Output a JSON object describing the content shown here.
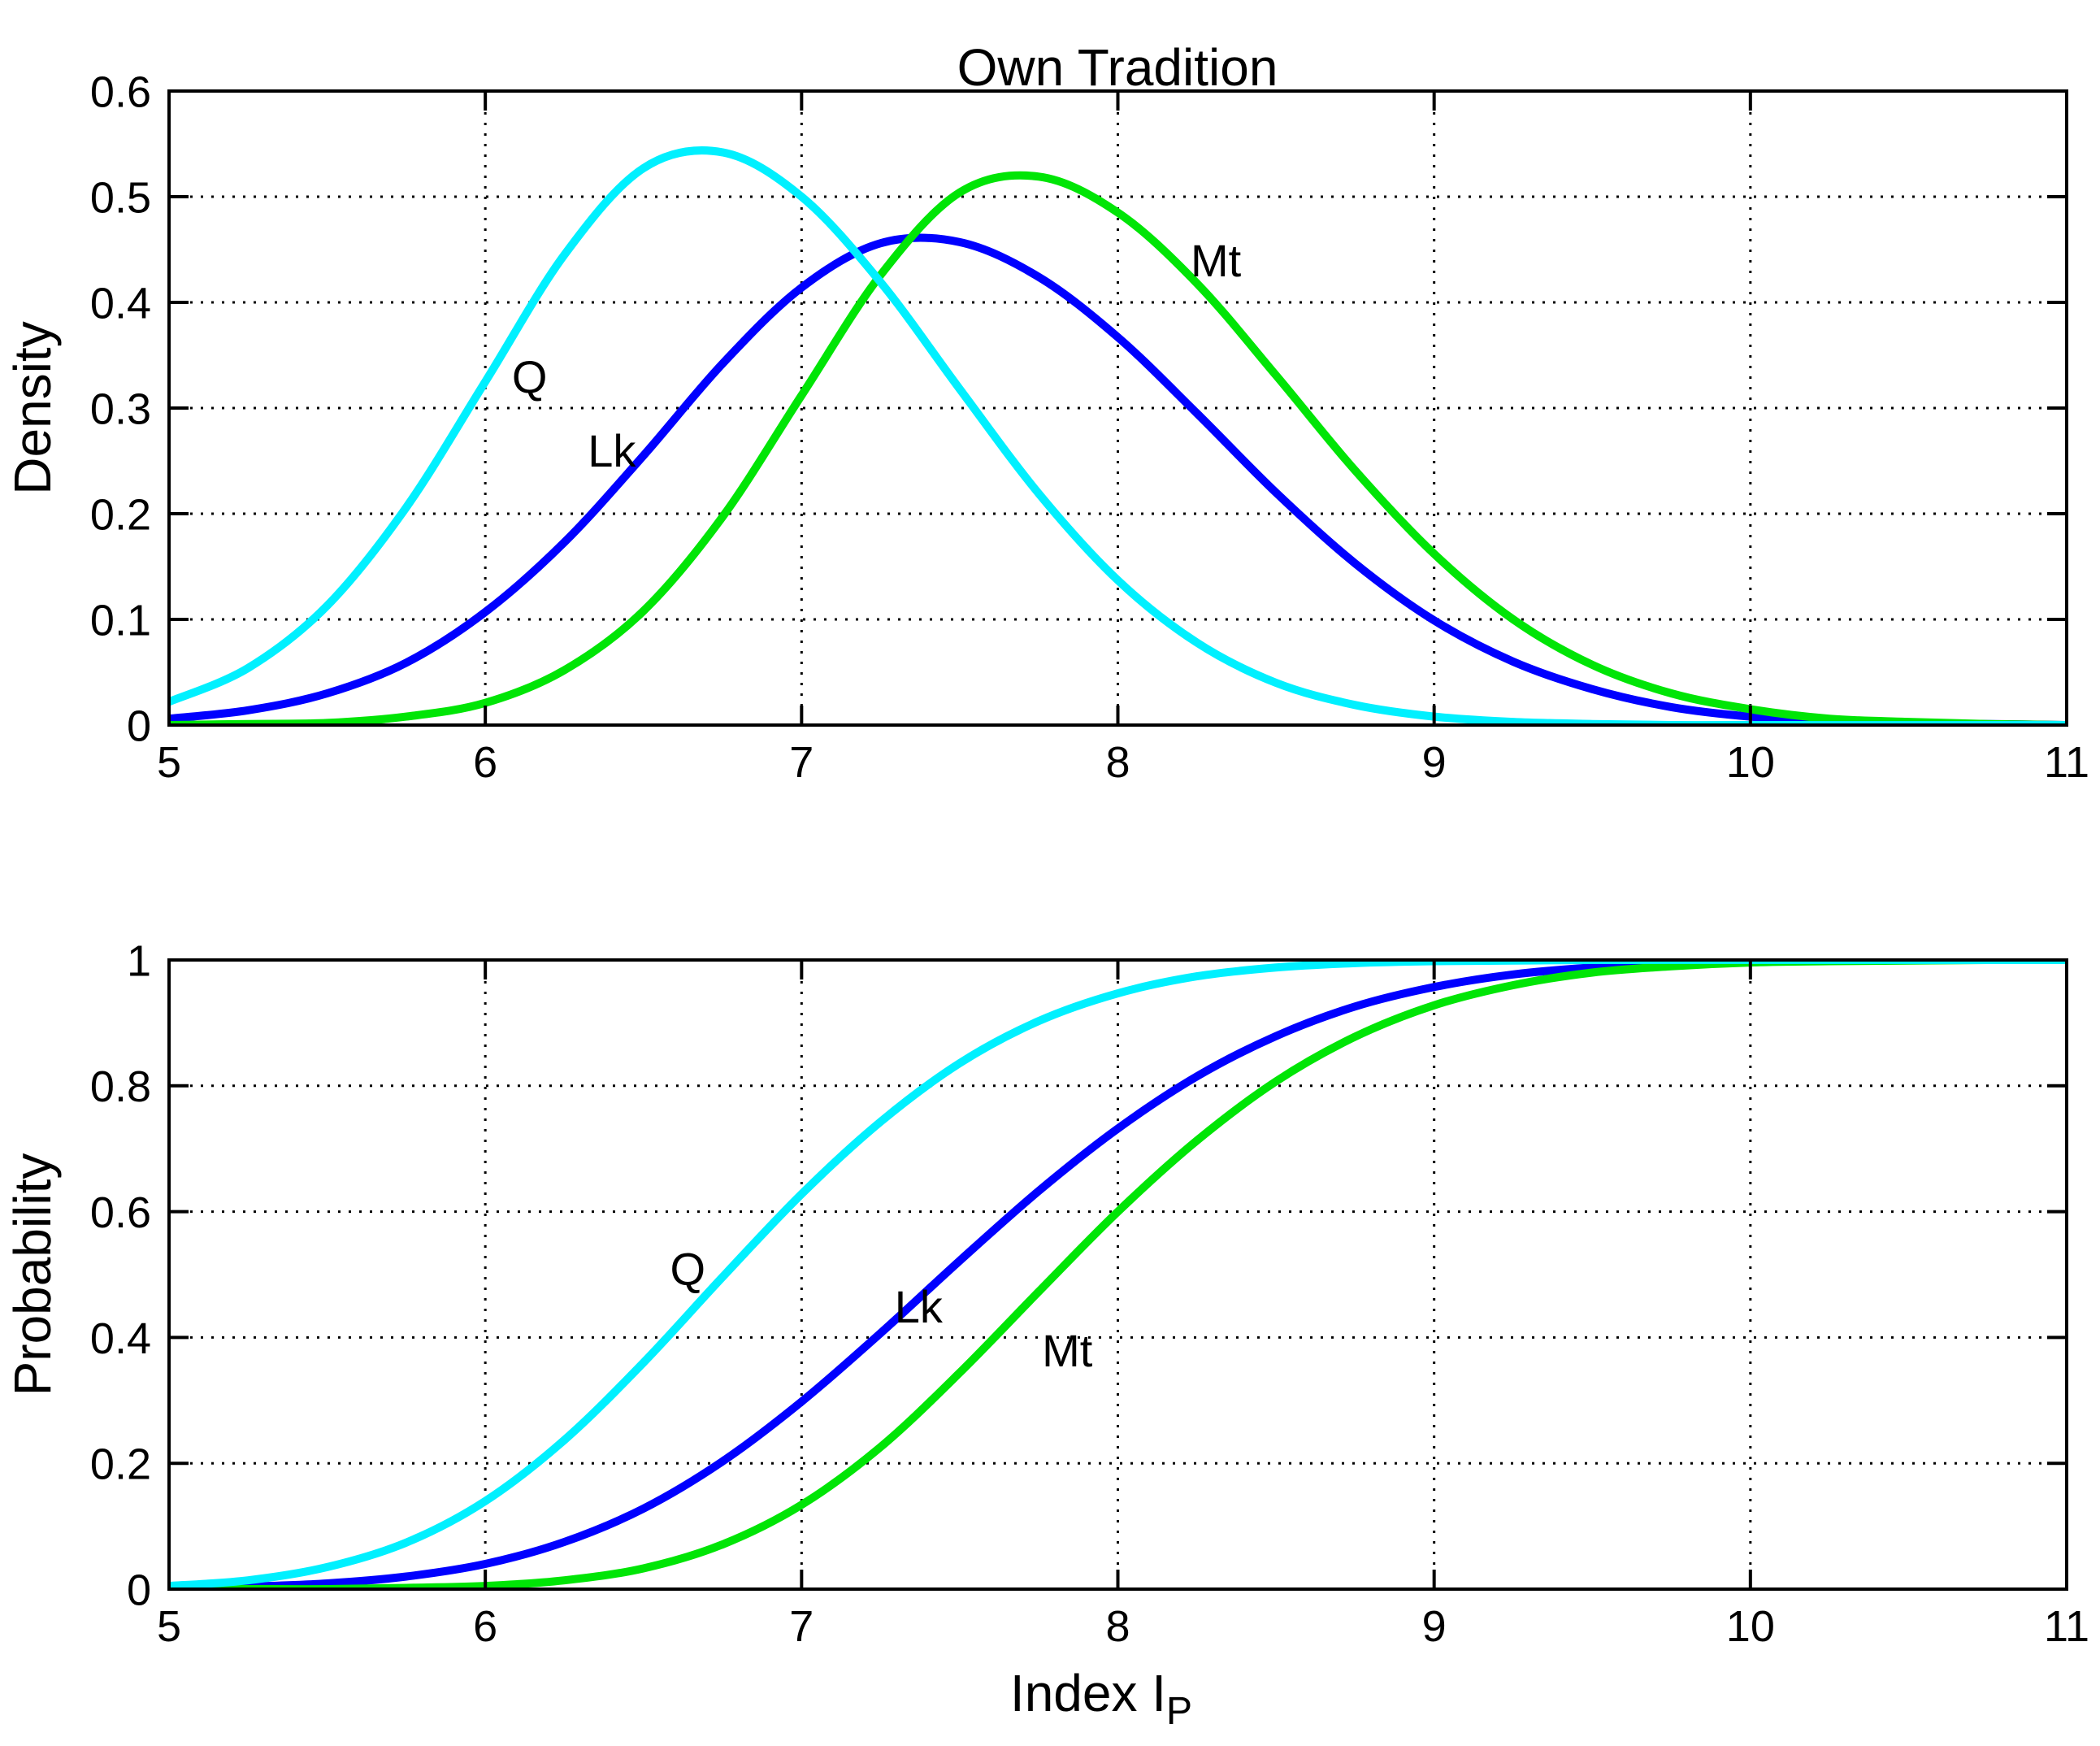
{
  "figure": {
    "background": "#ffffff",
    "axis_color": "#000000",
    "grid_color": "#000000"
  },
  "chart_data": [
    {
      "type": "line",
      "title": "Own Tradition",
      "xlabel": "",
      "ylabel": "Density",
      "xlim": [
        5,
        11
      ],
      "ylim": [
        0,
        0.6
      ],
      "grid": true,
      "legend_position": "none",
      "xticks": [
        5,
        6,
        7,
        8,
        9,
        10,
        11
      ],
      "xticklabels": [
        "5",
        "6",
        "7",
        "8",
        "9",
        "10",
        "11"
      ],
      "yticks": [
        0,
        0.1,
        0.2,
        0.3,
        0.4,
        0.5,
        0.6
      ],
      "yticklabels": [
        "0",
        "0.1",
        "0.2",
        "0.3",
        "0.4",
        "0.5",
        "0.6"
      ],
      "x": [
        5.0,
        5.25,
        5.5,
        5.75,
        6.0,
        6.25,
        6.5,
        6.75,
        7.0,
        7.25,
        7.5,
        7.75,
        8.0,
        8.25,
        8.5,
        8.75,
        9.0,
        9.25,
        9.5,
        9.75,
        10.0,
        10.25,
        10.5,
        10.75,
        11.0
      ],
      "series": [
        {
          "name": "Q",
          "color": "#00F0FF",
          "z_order": 3,
          "values": [
            0.022,
            0.054,
            0.113,
            0.206,
            0.325,
            0.445,
            0.527,
            0.542,
            0.5,
            0.419,
            0.318,
            0.219,
            0.137,
            0.078,
            0.04,
            0.019,
            0.008,
            0.003,
            0.001,
            0.0,
            0.0,
            0.0,
            0.0,
            0.0,
            0.0
          ]
        },
        {
          "name": "Lk",
          "color": "#0000FF",
          "z_order": 1,
          "values": [
            0.006,
            0.014,
            0.03,
            0.059,
            0.107,
            0.173,
            0.255,
            0.342,
            0.414,
            0.456,
            0.457,
            0.424,
            0.367,
            0.295,
            0.22,
            0.153,
            0.099,
            0.06,
            0.034,
            0.017,
            0.008,
            0.004,
            0.002,
            0.001,
            0.0
          ]
        },
        {
          "name": "Mt",
          "color": "#00E506",
          "z_order": 2,
          "values": [
            0.0,
            0.001,
            0.002,
            0.008,
            0.021,
            0.052,
            0.108,
            0.197,
            0.312,
            0.426,
            0.504,
            0.519,
            0.485,
            0.418,
            0.331,
            0.241,
            0.162,
            0.1,
            0.057,
            0.03,
            0.015,
            0.006,
            0.003,
            0.001,
            0.0
          ]
        }
      ],
      "annotations": [
        {
          "text": "Q",
          "x": 6.14,
          "y": 0.33
        },
        {
          "text": "Lk",
          "x": 6.4,
          "y": 0.26
        },
        {
          "text": "Mt",
          "x": 8.31,
          "y": 0.44
        }
      ]
    },
    {
      "type": "line",
      "title": "",
      "xlabel_text": "Index I",
      "xlabel_sub": "P",
      "ylabel": "Probability",
      "xlim": [
        5,
        11
      ],
      "ylim": [
        0,
        1
      ],
      "grid": true,
      "legend_position": "none",
      "xticks": [
        5,
        6,
        7,
        8,
        9,
        10,
        11
      ],
      "xticklabels": [
        "5",
        "6",
        "7",
        "8",
        "9",
        "10",
        "11"
      ],
      "yticks": [
        0,
        0.2,
        0.4,
        0.6,
        0.8,
        1
      ],
      "yticklabels": [
        "0",
        "0.2",
        "0.4",
        "0.6",
        "0.8",
        "1"
      ],
      "x": [
        5.0,
        5.25,
        5.5,
        5.75,
        6.0,
        6.25,
        6.5,
        6.75,
        7.0,
        7.25,
        7.5,
        7.75,
        8.0,
        8.25,
        8.5,
        8.75,
        9.0,
        9.25,
        9.5,
        9.75,
        10.0,
        10.25,
        10.5,
        10.75,
        11.0
      ],
      "series": [
        {
          "name": "Q",
          "color": "#00F0FF",
          "z_order": 3,
          "values": [
            0.005,
            0.014,
            0.035,
            0.074,
            0.14,
            0.237,
            0.36,
            0.496,
            0.628,
            0.743,
            0.836,
            0.903,
            0.947,
            0.974,
            0.988,
            0.995,
            0.998,
            0.999,
            1.0,
            1.0,
            1.0,
            1.0,
            1.0,
            1.0,
            1.0
          ]
        },
        {
          "name": "Lk",
          "color": "#0000FF",
          "z_order": 1,
          "values": [
            0.001,
            0.004,
            0.009,
            0.02,
            0.04,
            0.075,
            0.128,
            0.203,
            0.298,
            0.407,
            0.522,
            0.633,
            0.732,
            0.815,
            0.879,
            0.926,
            0.957,
            0.977,
            0.988,
            0.994,
            0.997,
            0.999,
            1.0,
            1.0,
            1.0
          ]
        },
        {
          "name": "Mt",
          "color": "#00E506",
          "z_order": 2,
          "values": [
            0.0,
            0.0,
            0.0,
            0.002,
            0.005,
            0.014,
            0.033,
            0.071,
            0.134,
            0.226,
            0.344,
            0.473,
            0.6,
            0.713,
            0.807,
            0.878,
            0.928,
            0.96,
            0.98,
            0.99,
            0.996,
            0.998,
            0.999,
            1.0,
            1.0
          ]
        }
      ],
      "annotations": [
        {
          "text": "Q",
          "x": 6.64,
          "y": 0.51
        },
        {
          "text": "Lk",
          "x": 7.37,
          "y": 0.45
        },
        {
          "text": "Mt",
          "x": 7.84,
          "y": 0.38
        }
      ]
    }
  ]
}
